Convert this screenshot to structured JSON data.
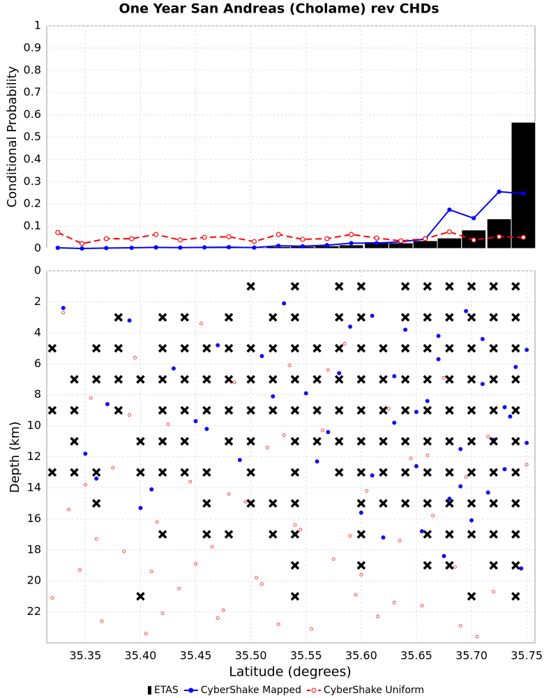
{
  "chart_data": [
    {
      "type": "combo",
      "title": "One Year San Andreas (Cholame) rev CHDs",
      "ylabel": "Conditional Probability",
      "xlim": [
        35.315,
        35.7575
      ],
      "ylim": [
        0,
        1
      ],
      "yticks": [
        0,
        0.1,
        0.2,
        0.3,
        0.4,
        0.5,
        0.6,
        0.7,
        0.8,
        0.9,
        1
      ],
      "grid": true,
      "x": [
        35.325,
        35.347,
        35.369,
        35.392,
        35.414,
        35.436,
        35.458,
        35.48,
        35.503,
        35.525,
        35.547,
        35.569,
        35.591,
        35.614,
        35.636,
        35.658,
        35.68,
        35.702,
        35.725,
        35.747
      ],
      "series": [
        {
          "name": "ETAS",
          "kind": "bar",
          "color": "#000000",
          "values": [
            0.002,
            0.002,
            0.003,
            0.003,
            0.004,
            0.004,
            0.005,
            0.006,
            0.004,
            0.008,
            0.009,
            0.012,
            0.016,
            0.03,
            0.025,
            0.035,
            0.047,
            0.083,
            0.133,
            0.567
          ]
        },
        {
          "name": "CyberShake Mapped",
          "kind": "line",
          "color": "#0000ff",
          "dashed": false,
          "values": [
            0.003,
            0,
            0.002,
            0.003,
            0.005,
            0.004,
            0.005,
            0.006,
            0.004,
            0.012,
            0.01,
            0.015,
            0.024,
            0.024,
            0.03,
            0.042,
            0.174,
            0.136,
            0.255,
            0.247
          ]
        },
        {
          "name": "CyberShake Uniform",
          "kind": "line",
          "color": "#ff0000",
          "dashed": true,
          "values": [
            0.072,
            0.022,
            0.044,
            0.044,
            0.063,
            0.038,
            0.05,
            0.053,
            0.031,
            0.063,
            0.041,
            0.044,
            0.063,
            0.047,
            0.034,
            0.044,
            0.075,
            0.038,
            0.053,
            0.05
          ]
        }
      ]
    },
    {
      "type": "scatter",
      "xlabel": "Latitude (degrees)",
      "ylabel": "Depth (km)",
      "xlim": [
        35.315,
        35.7575
      ],
      "ylim": [
        0,
        24
      ],
      "y_inverted": true,
      "grid": true,
      "xticks": [
        35.35,
        {
          "value": 35.4,
          "label": "35.40"
        },
        35.45,
        {
          "value": 35.5,
          "label": "35.50"
        },
        35.55,
        {
          "value": 35.6,
          "label": "35.60"
        },
        35.65,
        {
          "value": 35.7,
          "label": "35.70"
        },
        35.75
      ],
      "yticks": [
        0,
        2,
        4,
        6,
        8,
        10,
        12,
        14,
        16,
        18,
        20,
        22
      ],
      "series": [
        {
          "marker": "x",
          "color": "#000000",
          "x": [
            35.5,
            35.54,
            35.58,
            35.6,
            35.64,
            35.66,
            35.68,
            35.7,
            35.72,
            35.74,
            35.38,
            35.42,
            35.44,
            35.48,
            35.52,
            35.54,
            35.58,
            35.6,
            35.64,
            35.66,
            35.68,
            35.7,
            35.72,
            35.74,
            35.32,
            35.36,
            35.38,
            35.42,
            35.44,
            35.46,
            35.48,
            35.5,
            35.52,
            35.54,
            35.56,
            35.58,
            35.6,
            35.62,
            35.64,
            35.66,
            35.68,
            35.7,
            35.72,
            35.74,
            35.34,
            35.36,
            35.38,
            35.4,
            35.42,
            35.44,
            35.46,
            35.48,
            35.5,
            35.52,
            35.54,
            35.56,
            35.58,
            35.6,
            35.62,
            35.64,
            35.66,
            35.68,
            35.7,
            35.72,
            35.74,
            35.32,
            35.34,
            35.38,
            35.42,
            35.44,
            35.46,
            35.48,
            35.5,
            35.52,
            35.54,
            35.56,
            35.58,
            35.6,
            35.62,
            35.64,
            35.66,
            35.68,
            35.7,
            35.72,
            35.74,
            35.34,
            35.4,
            35.42,
            35.44,
            35.48,
            35.5,
            35.54,
            35.56,
            35.58,
            35.6,
            35.62,
            35.64,
            35.66,
            35.68,
            35.7,
            35.72,
            35.74,
            35.32,
            35.34,
            35.36,
            35.4,
            35.42,
            35.44,
            35.46,
            35.5,
            35.54,
            35.58,
            35.6,
            35.62,
            35.64,
            35.66,
            35.68,
            35.7,
            35.72,
            35.74,
            35.36,
            35.46,
            35.5,
            35.52,
            35.54,
            35.6,
            35.62,
            35.64,
            35.66,
            35.68,
            35.7,
            35.72,
            35.74,
            35.42,
            35.46,
            35.48,
            35.52,
            35.54,
            35.6,
            35.66,
            35.68,
            35.7,
            35.72,
            35.74,
            35.54,
            35.6,
            35.66,
            35.68,
            35.72,
            35.74,
            35.4,
            35.54,
            35.7,
            35.74
          ],
          "y": [
            1,
            1,
            1,
            1,
            1,
            1,
            1,
            1,
            1,
            1,
            3,
            3,
            3,
            3,
            3,
            3,
            3,
            3,
            3,
            3,
            3,
            3,
            3,
            3,
            5,
            5,
            5,
            5,
            5,
            5,
            5,
            5,
            5,
            5,
            5,
            5,
            5,
            5,
            5,
            5,
            5,
            5,
            5,
            5,
            7,
            7,
            7,
            7,
            7,
            7,
            7,
            7,
            7,
            7,
            7,
            7,
            7,
            7,
            7,
            7,
            7,
            7,
            7,
            7,
            7,
            9,
            9,
            9,
            9,
            9,
            9,
            9,
            9,
            9,
            9,
            9,
            9,
            9,
            9,
            9,
            9,
            9,
            9,
            9,
            9,
            11,
            11,
            11,
            11,
            11,
            11,
            11,
            11,
            11,
            11,
            11,
            11,
            11,
            11,
            11,
            11,
            11,
            13,
            13,
            13,
            13,
            13,
            13,
            13,
            13,
            13,
            13,
            13,
            13,
            13,
            13,
            13,
            13,
            13,
            13,
            15,
            15,
            15,
            15,
            15,
            15,
            15,
            15,
            15,
            15,
            15,
            15,
            15,
            17,
            17,
            17,
            17,
            17,
            17,
            17,
            17,
            17,
            17,
            17,
            19,
            19,
            19,
            19,
            19,
            19,
            21,
            21,
            21,
            21
          ]
        },
        {
          "marker": "dot",
          "color": "#1010ee",
          "x": [
            35.33,
            35.35,
            35.37,
            35.39,
            35.41,
            35.43,
            35.45,
            35.47,
            35.49,
            35.51,
            35.53,
            35.55,
            35.57,
            35.59,
            35.61,
            35.63,
            35.65,
            35.67,
            35.69,
            35.71,
            35.73,
            35.75,
            35.6,
            35.62,
            35.64,
            35.66,
            35.68,
            35.7,
            35.72,
            35.74,
            35.61,
            35.63,
            35.65,
            35.67,
            35.69,
            35.71,
            35.73,
            35.75,
            35.655,
            35.675,
            35.695,
            35.715,
            35.735,
            35.745,
            35.58,
            35.56,
            35.52,
            35.46,
            35.4,
            35.36
          ],
          "y": [
            2.4,
            11.8,
            8.6,
            3.2,
            14.1,
            6.3,
            9.7,
            4.8,
            12.2,
            5.5,
            2.1,
            7.9,
            10.4,
            3.6,
            13.2,
            6.8,
            9.1,
            4.2,
            11.5,
            7.3,
            12.8,
            5.1,
            15.6,
            17.2,
            3.8,
            8.4,
            14.7,
            16.1,
            10.9,
            6.2,
            2.9,
            9.8,
            12.6,
            5.7,
            13.9,
            4.4,
            8.8,
            11.1,
            16.8,
            18.4,
            2.6,
            14.3,
            9.4,
            19.2,
            6.6,
            12.3,
            8.1,
            10.2,
            15.3,
            13.4
          ]
        },
        {
          "marker": "circle",
          "color": "#ff3333",
          "x": [
            35.32,
            35.335,
            35.345,
            35.355,
            35.365,
            35.375,
            35.385,
            35.395,
            35.405,
            35.415,
            35.425,
            35.435,
            35.445,
            35.455,
            35.465,
            35.475,
            35.485,
            35.495,
            35.505,
            35.515,
            35.525,
            35.535,
            35.545,
            35.555,
            35.565,
            35.575,
            35.585,
            35.595,
            35.605,
            35.615,
            35.625,
            35.635,
            35.645,
            35.655,
            35.665,
            35.675,
            35.685,
            35.695,
            35.705,
            35.715,
            35.33,
            35.36,
            35.39,
            35.42,
            35.45,
            35.48,
            35.51,
            35.54,
            35.57,
            35.6,
            35.63,
            35.66,
            35.69,
            35.72,
            35.75,
            35.35,
            35.41,
            35.47,
            35.53,
            35.59
          ],
          "y": [
            21.1,
            15.4,
            19.3,
            8.2,
            22.6,
            12.7,
            18.1,
            5.6,
            23.4,
            16.2,
            9.9,
            20.5,
            13.6,
            3.4,
            17.8,
            21.9,
            7.2,
            14.9,
            19.8,
            11.4,
            22.8,
            6.1,
            16.7,
            23.1,
            10.3,
            18.6,
            4.7,
            20.9,
            14.2,
            22.3,
            8.9,
            17.4,
            12.1,
            21.6,
            15.8,
            6.9,
            19.1,
            13.3,
            23.6,
            10.7,
            2.7,
            17.3,
            9.3,
            22.1,
            18.9,
            14.4,
            20.2,
            16.4,
            6.4,
            19.6,
            21.4,
            11.9,
            22.9,
            20.7,
            12.5,
            13.8,
            19.4,
            22.4,
            10.6,
            17.1
          ]
        }
      ]
    }
  ]
}
